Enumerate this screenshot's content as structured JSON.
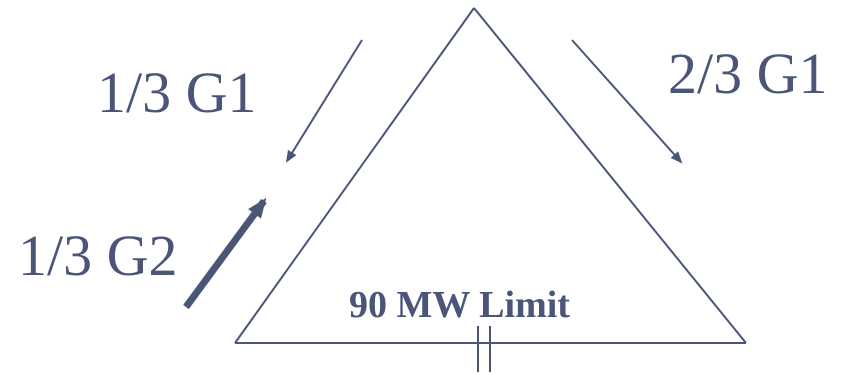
{
  "diagram": {
    "labels": {
      "left_upper": "1/3 G1",
      "right_upper": "2/3 G1",
      "left_lower": "1/3 G2",
      "limit": "90 MW Limit"
    },
    "colors": {
      "ink": "#4a5578",
      "background": "#ffffff"
    }
  }
}
